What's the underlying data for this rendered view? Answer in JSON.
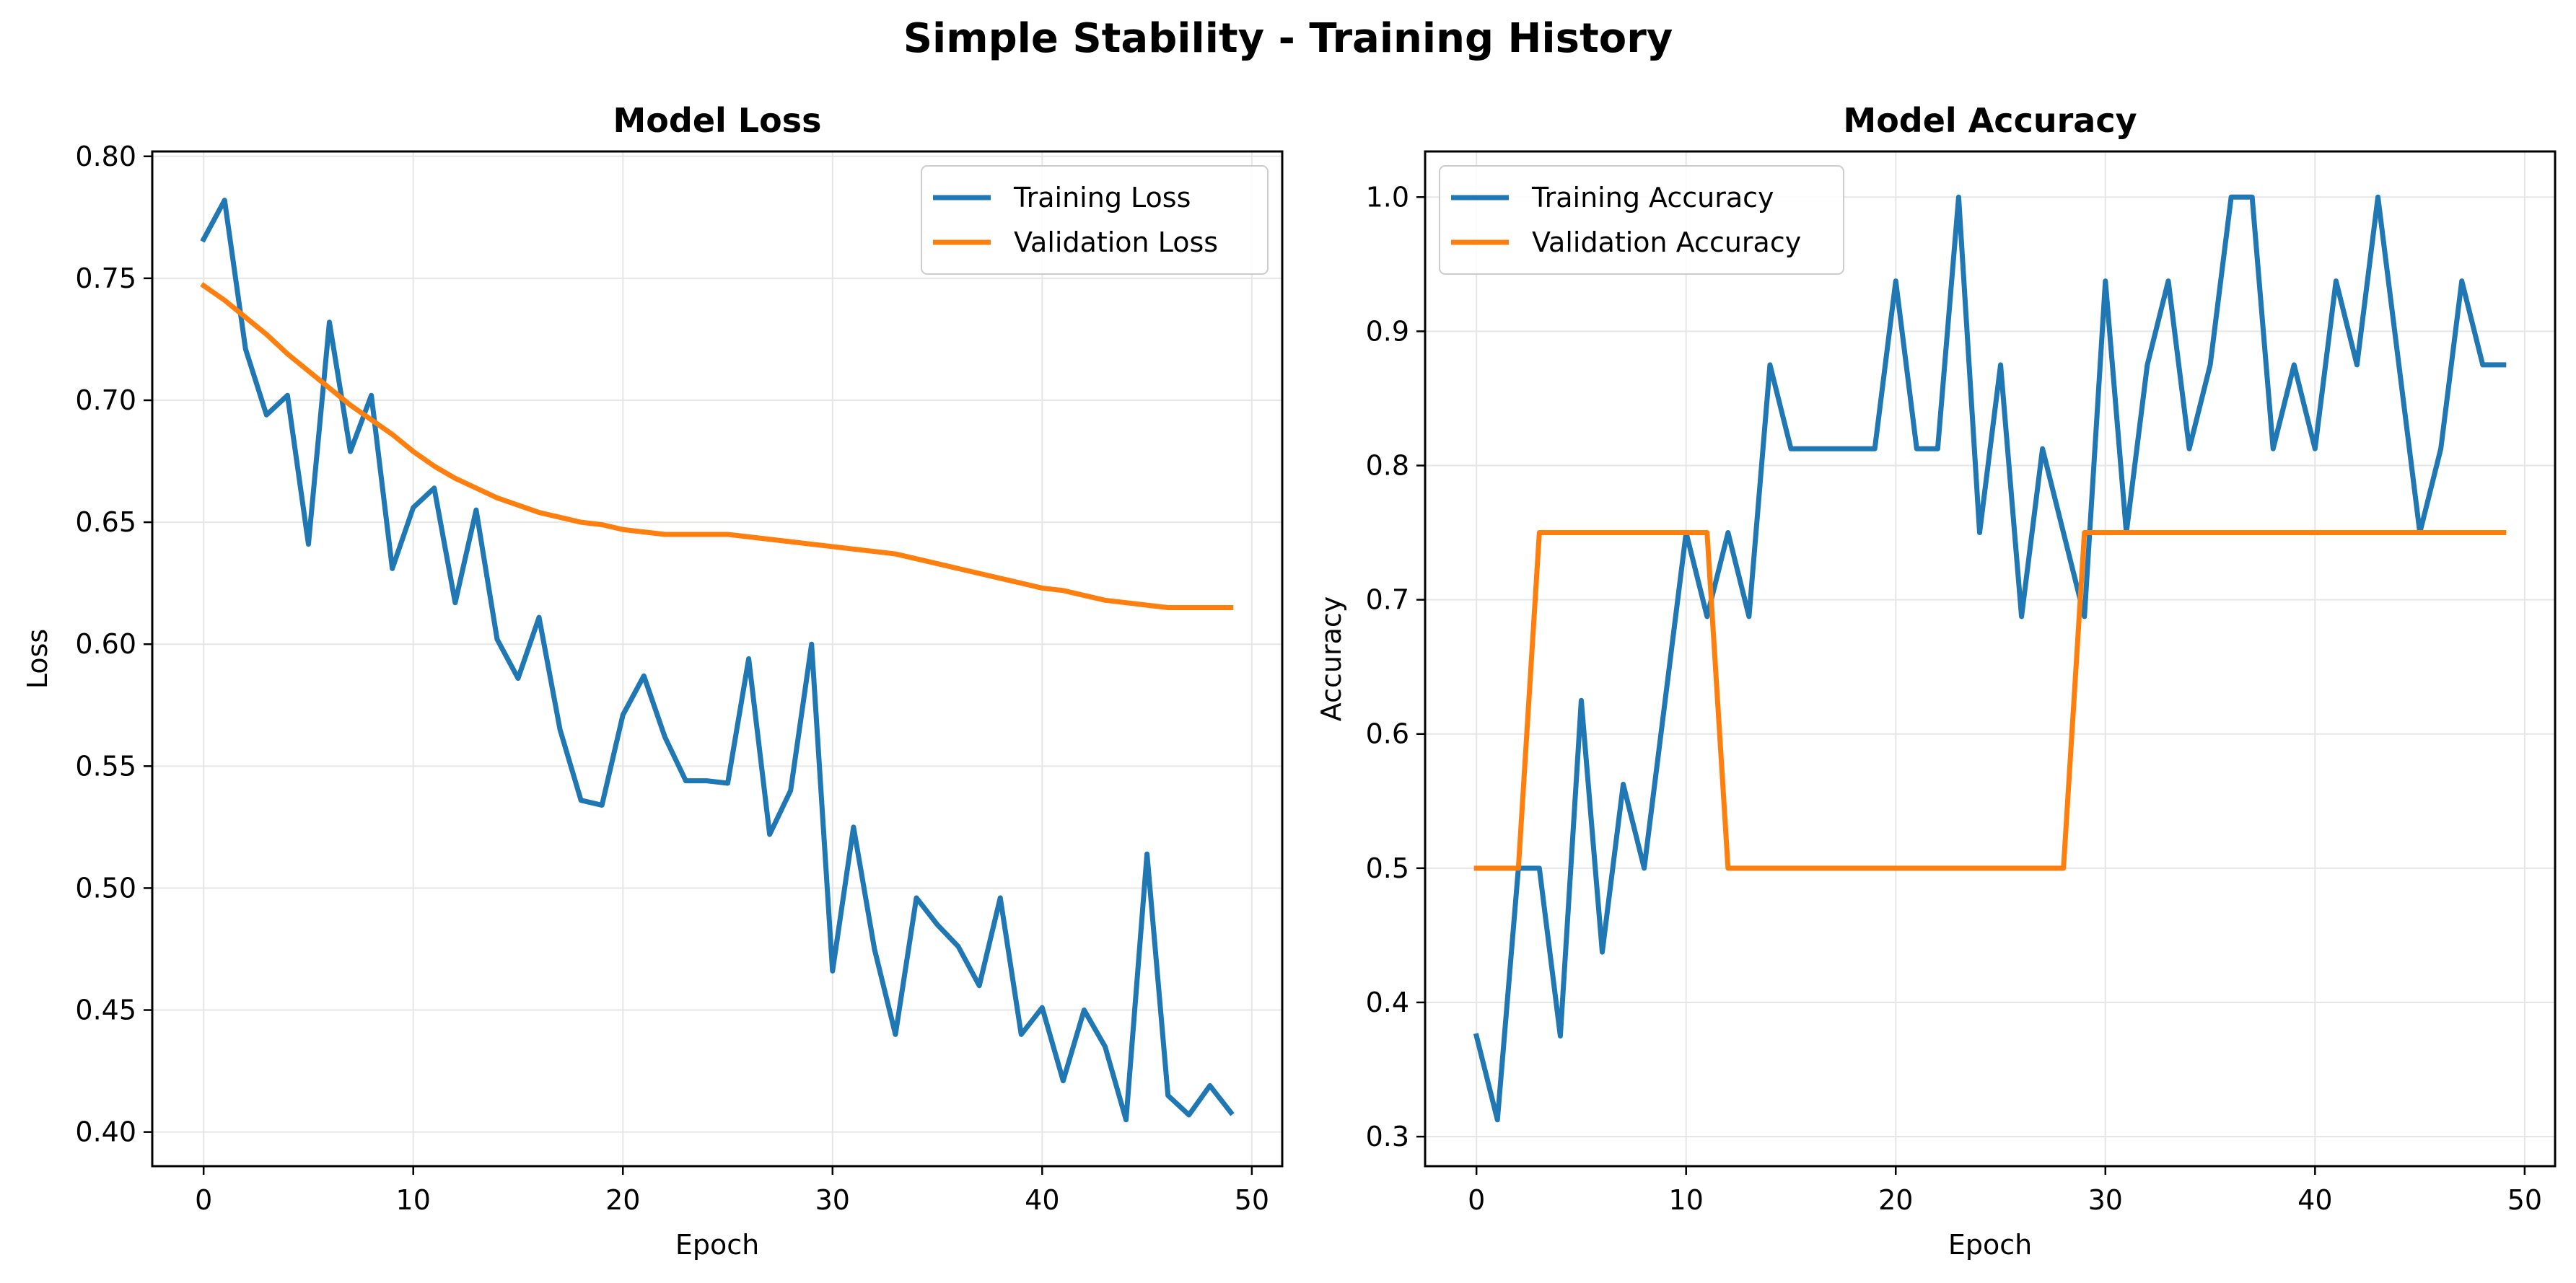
{
  "figure_title": "Simple Stability - Training History",
  "colors": {
    "training": "#1f77b4",
    "validation": "#ff7f0e",
    "grid": "#e6e6e6",
    "axes": "#000000"
  },
  "chart_data": [
    {
      "type": "line",
      "title": "Model Loss",
      "xlabel": "Epoch",
      "ylabel": "Loss",
      "xlim": [
        -2.45,
        51.45
      ],
      "ylim": [
        0.386,
        0.802
      ],
      "xticks": [
        0,
        10,
        20,
        30,
        40,
        50
      ],
      "xtick_labels": [
        "0",
        "10",
        "20",
        "30",
        "40",
        "50"
      ],
      "yticks": [
        0.4,
        0.45,
        0.5,
        0.55,
        0.6,
        0.65,
        0.7,
        0.75,
        0.8
      ],
      "ytick_labels": [
        "0.40",
        "0.45",
        "0.50",
        "0.55",
        "0.60",
        "0.65",
        "0.70",
        "0.75",
        "0.80"
      ],
      "grid": true,
      "legend_position": "top-right",
      "x": [
        0,
        1,
        2,
        3,
        4,
        5,
        6,
        7,
        8,
        9,
        10,
        11,
        12,
        13,
        14,
        15,
        16,
        17,
        18,
        19,
        20,
        21,
        22,
        23,
        24,
        25,
        26,
        27,
        28,
        29,
        30,
        31,
        32,
        33,
        34,
        35,
        36,
        37,
        38,
        39,
        40,
        41,
        42,
        43,
        44,
        45,
        46,
        47,
        48,
        49
      ],
      "series": [
        {
          "name": "Training Loss",
          "color": "#1f77b4",
          "values": [
            0.766,
            0.782,
            0.721,
            0.694,
            0.702,
            0.641,
            0.732,
            0.679,
            0.702,
            0.631,
            0.656,
            0.664,
            0.617,
            0.655,
            0.602,
            0.586,
            0.611,
            0.565,
            0.536,
            0.534,
            0.571,
            0.587,
            0.562,
            0.544,
            0.544,
            0.543,
            0.594,
            0.522,
            0.54,
            0.6,
            0.466,
            0.525,
            0.475,
            0.44,
            0.496,
            0.485,
            0.476,
            0.46,
            0.496,
            0.44,
            0.451,
            0.421,
            0.45,
            0.435,
            0.405,
            0.514,
            0.415,
            0.407,
            0.419,
            0.408
          ]
        },
        {
          "name": "Validation Loss",
          "color": "#ff7f0e",
          "values": [
            0.747,
            0.741,
            0.734,
            0.727,
            0.719,
            0.712,
            0.705,
            0.698,
            0.692,
            0.686,
            0.679,
            0.673,
            0.668,
            0.664,
            0.66,
            0.657,
            0.654,
            0.652,
            0.65,
            0.649,
            0.647,
            0.646,
            0.645,
            0.645,
            0.645,
            0.645,
            0.644,
            0.643,
            0.642,
            0.641,
            0.64,
            0.639,
            0.638,
            0.637,
            0.635,
            0.633,
            0.631,
            0.629,
            0.627,
            0.625,
            0.623,
            0.622,
            0.62,
            0.618,
            0.617,
            0.616,
            0.615,
            0.615,
            0.615,
            0.615
          ]
        }
      ]
    },
    {
      "type": "line",
      "title": "Model Accuracy",
      "xlabel": "Epoch",
      "ylabel": "Accuracy",
      "xlim": [
        -2.45,
        51.45
      ],
      "ylim": [
        0.278,
        1.034
      ],
      "xticks": [
        0,
        10,
        20,
        30,
        40,
        50
      ],
      "xtick_labels": [
        "0",
        "10",
        "20",
        "30",
        "40",
        "50"
      ],
      "yticks": [
        0.3,
        0.4,
        0.5,
        0.6,
        0.7,
        0.8,
        0.9,
        1.0
      ],
      "ytick_labels": [
        "0.3",
        "0.4",
        "0.5",
        "0.6",
        "0.7",
        "0.8",
        "0.9",
        "1.0"
      ],
      "grid": true,
      "legend_position": "top-left",
      "x": [
        0,
        1,
        2,
        3,
        4,
        5,
        6,
        7,
        8,
        9,
        10,
        11,
        12,
        13,
        14,
        15,
        16,
        17,
        18,
        19,
        20,
        21,
        22,
        23,
        24,
        25,
        26,
        27,
        28,
        29,
        30,
        31,
        32,
        33,
        34,
        35,
        36,
        37,
        38,
        39,
        40,
        41,
        42,
        43,
        44,
        45,
        46,
        47,
        48,
        49
      ],
      "series": [
        {
          "name": "Training Accuracy",
          "color": "#1f77b4",
          "values": [
            0.375,
            0.3125,
            0.5,
            0.5,
            0.375,
            0.625,
            0.4375,
            0.5625,
            0.5,
            0.625,
            0.75,
            0.6875,
            0.75,
            0.6875,
            0.875,
            0.8125,
            0.8125,
            0.8125,
            0.8125,
            0.8125,
            0.9375,
            0.8125,
            0.8125,
            1.0,
            0.75,
            0.875,
            0.6875,
            0.8125,
            0.75,
            0.6875,
            0.9375,
            0.75,
            0.875,
            0.9375,
            0.8125,
            0.875,
            1.0,
            1.0,
            0.8125,
            0.875,
            0.8125,
            0.9375,
            0.875,
            1.0,
            0.875,
            0.75,
            0.8125,
            0.9375,
            0.875,
            0.875
          ]
        },
        {
          "name": "Validation Accuracy",
          "color": "#ff7f0e",
          "values": [
            0.5,
            0.5,
            0.5,
            0.75,
            0.75,
            0.75,
            0.75,
            0.75,
            0.75,
            0.75,
            0.75,
            0.75,
            0.5,
            0.5,
            0.5,
            0.5,
            0.5,
            0.5,
            0.5,
            0.5,
            0.5,
            0.5,
            0.5,
            0.5,
            0.5,
            0.5,
            0.5,
            0.5,
            0.5,
            0.75,
            0.75,
            0.75,
            0.75,
            0.75,
            0.75,
            0.75,
            0.75,
            0.75,
            0.75,
            0.75,
            0.75,
            0.75,
            0.75,
            0.75,
            0.75,
            0.75,
            0.75,
            0.75,
            0.75,
            0.75
          ]
        }
      ]
    }
  ]
}
